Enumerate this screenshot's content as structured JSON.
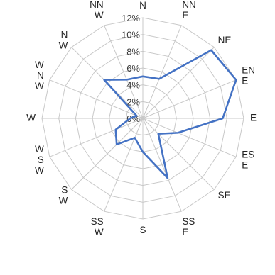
{
  "chart_data": {
    "type": "radar",
    "categories": [
      "N",
      "NNE",
      "NE",
      "ENE",
      "E",
      "ESE",
      "SE",
      "SSE",
      "S",
      "SSW",
      "SW",
      "WSW",
      "W",
      "WNW",
      "NW",
      "NNW"
    ],
    "category_labels": [
      [
        "N"
      ],
      [
        "NN",
        "E"
      ],
      [
        "NE"
      ],
      [
        "EN",
        "E"
      ],
      [
        "E"
      ],
      [
        "ES",
        "E"
      ],
      [
        "SE"
      ],
      [
        "SS",
        "E"
      ],
      [
        "S"
      ],
      [
        "SS",
        "W"
      ],
      [
        "S",
        "W"
      ],
      [
        "W",
        "S",
        "W"
      ],
      [
        "W"
      ],
      [
        "W",
        "N",
        "W"
      ],
      [
        "N",
        "W"
      ],
      [
        "NN",
        "W"
      ]
    ],
    "series": [
      {
        "values": [
          5.0,
          5.1,
          11.5,
          12.0,
          9.5,
          4.5,
          2.6,
          7.7,
          4.0,
          2.5,
          4.4,
          3.5,
          1.5,
          0.8,
          6.5,
          5.0
        ],
        "color": "#4472c4"
      }
    ],
    "ticks": [
      "0%",
      "2%",
      "4%",
      "6%",
      "8%",
      "10%",
      "12%"
    ],
    "tick_values": [
      0,
      2,
      4,
      6,
      8,
      10,
      12
    ],
    "rlim": [
      0,
      12
    ],
    "grid": true,
    "legend": "none"
  }
}
